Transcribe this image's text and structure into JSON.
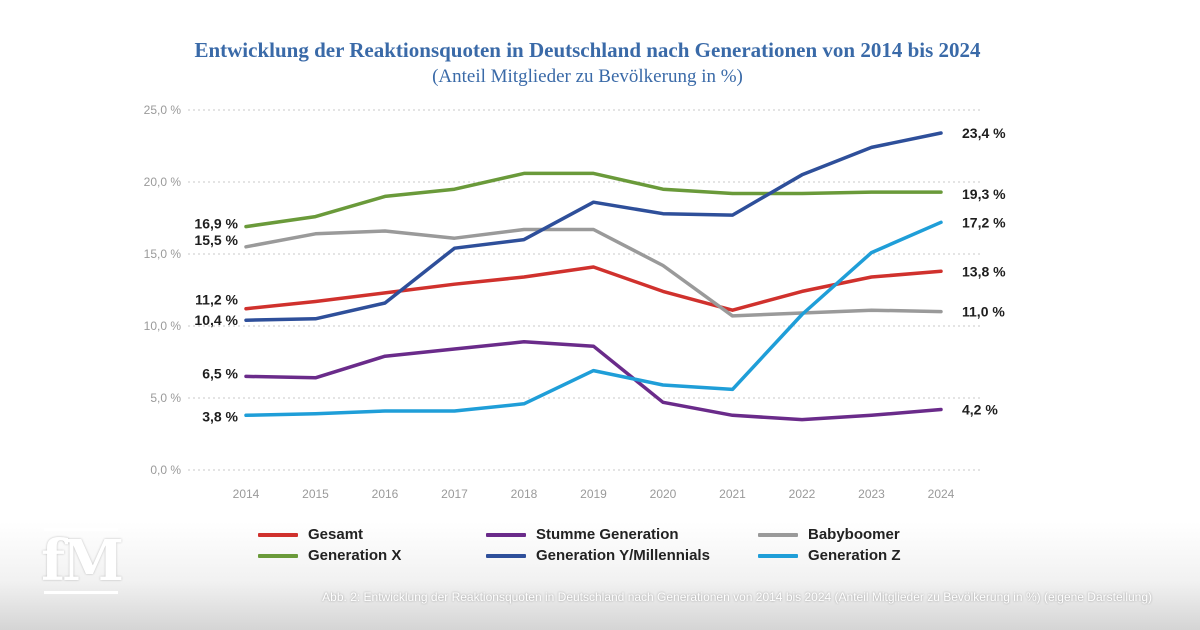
{
  "chart_data": {
    "type": "line",
    "title": "Entwicklung der Reaktionsquoten in Deutschland nach Generationen von 2014 bis 2024",
    "subtitle": "(Anteil Mitglieder zu Bevölkerung in %)",
    "xlabel": "",
    "ylabel": "",
    "ylim": [
      0,
      25
    ],
    "grid": true,
    "x": [
      "2014",
      "2015",
      "2016",
      "2017",
      "2018",
      "2019",
      "2020",
      "2021",
      "2022",
      "2023",
      "2024"
    ],
    "y_ticks": [
      "0,0 %",
      "5,0 %",
      "10,0 %",
      "15,0 %",
      "20,0 %",
      "25,0 %"
    ],
    "y_tick_values": [
      0,
      5,
      10,
      15,
      20,
      25
    ],
    "series": [
      {
        "key": "gesamt",
        "name": "Gesamt",
        "color": "#d0312d",
        "values": [
          11.2,
          11.7,
          12.3,
          12.9,
          13.4,
          14.1,
          12.4,
          11.1,
          12.4,
          13.4,
          13.8
        ],
        "start_label": "11,2 %",
        "end_label": "13,8 %"
      },
      {
        "key": "stumme",
        "name": "Stumme Generation",
        "color": "#6a2b8a",
        "values": [
          6.5,
          6.4,
          7.9,
          8.4,
          8.9,
          8.6,
          4.7,
          3.8,
          3.5,
          3.8,
          4.2
        ],
        "start_label": "6,5 %",
        "end_label": "4,2 %"
      },
      {
        "key": "babyboomer",
        "name": "Babyboomer",
        "color": "#9a9a9a",
        "values": [
          15.5,
          16.4,
          16.6,
          16.1,
          16.7,
          16.7,
          14.2,
          10.7,
          10.9,
          11.1,
          11.0
        ],
        "start_label": "15,5 %",
        "end_label": "11,0 %"
      },
      {
        "key": "genx",
        "name": "Generation X",
        "color": "#6a9a3a",
        "values": [
          16.9,
          17.6,
          19.0,
          19.5,
          20.6,
          20.6,
          19.5,
          19.2,
          19.2,
          19.3,
          19.3
        ],
        "start_label": "16,9 %",
        "end_label": "19,3 %"
      },
      {
        "key": "geny",
        "name": "Generation Y/Millennials",
        "color": "#2e4f9a",
        "values": [
          10.4,
          10.5,
          11.6,
          15.4,
          16.0,
          18.6,
          17.8,
          17.7,
          20.5,
          22.4,
          23.4
        ],
        "start_label": "10,4 %",
        "end_label": "23,4 %"
      },
      {
        "key": "genz",
        "name": "Generation Z",
        "color": "#1f9ed8",
        "values": [
          3.8,
          3.9,
          4.1,
          4.1,
          4.6,
          6.9,
          5.9,
          5.6,
          10.8,
          15.1,
          17.2
        ],
        "start_label": "3,8 %",
        "end_label": "17,2 %"
      }
    ],
    "legend_placement": "bottom"
  },
  "branding": {
    "logo_text": "fM",
    "caption": "Abb. 2: Entwicklung der Reaktionsquoten in Deutschland nach Generationen von 2014 bis 2024 (Anteil Mitglieder zu Bevölkerung in %) (eigene Darstellung)"
  }
}
